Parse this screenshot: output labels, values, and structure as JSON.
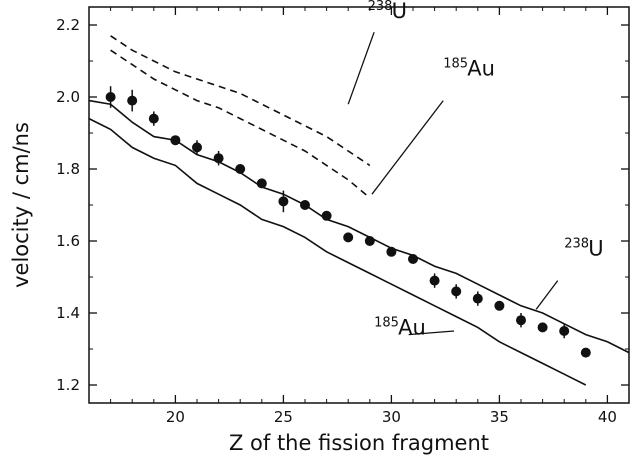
{
  "chart_data": {
    "type": "scatter",
    "xlabel": "Z of the fission fragment",
    "ylabel": "velocity / cm/ns",
    "xlim": [
      16,
      41
    ],
    "ylim": [
      1.15,
      2.25
    ],
    "xticks": [
      "20",
      "25",
      "30",
      "35",
      "40"
    ],
    "yticks": [
      "1.2",
      "1.4",
      "1.6",
      "1.8",
      "2.0",
      "2.2"
    ],
    "grid": false,
    "series": [
      {
        "style": "points-with-errorbars",
        "x": [
          17,
          18,
          19,
          20,
          21,
          22,
          23,
          24,
          25,
          26,
          27,
          28,
          29,
          30,
          31,
          32,
          33,
          34,
          35,
          36,
          37,
          38,
          39
        ],
        "y": [
          2.0,
          1.99,
          1.94,
          1.88,
          1.86,
          1.83,
          1.8,
          1.76,
          1.71,
          1.7,
          1.67,
          1.61,
          1.6,
          1.57,
          1.55,
          1.49,
          1.46,
          1.44,
          1.42,
          1.38,
          1.36,
          1.35,
          1.29
        ],
        "err": [
          0.03,
          0.03,
          0.02,
          0.01,
          0.02,
          0.02,
          0.01,
          0.01,
          0.03,
          0.01,
          0.01,
          0.01,
          0.01,
          0.01,
          0.01,
          0.02,
          0.02,
          0.02,
          0.01,
          0.02,
          0.01,
          0.02,
          0.01
        ]
      },
      {
        "style": "solid",
        "x": [
          16,
          17,
          18,
          19,
          20,
          21,
          22,
          23,
          24,
          25,
          26,
          27,
          28,
          29,
          30,
          31,
          32,
          33,
          34,
          35,
          36,
          37,
          38,
          39,
          40,
          41
        ],
        "y": [
          1.99,
          1.98,
          1.93,
          1.89,
          1.88,
          1.84,
          1.82,
          1.79,
          1.75,
          1.73,
          1.7,
          1.66,
          1.64,
          1.61,
          1.58,
          1.56,
          1.53,
          1.51,
          1.48,
          1.45,
          1.42,
          1.4,
          1.37,
          1.34,
          1.32,
          1.29
        ]
      },
      {
        "style": "solid",
        "x": [
          16,
          17,
          18,
          19,
          20,
          21,
          22,
          23,
          24,
          25,
          26,
          27,
          28,
          29,
          30,
          31,
          32,
          33,
          34,
          35,
          36,
          37,
          38,
          39
        ],
        "y": [
          1.94,
          1.91,
          1.86,
          1.83,
          1.81,
          1.76,
          1.73,
          1.7,
          1.66,
          1.64,
          1.61,
          1.57,
          1.54,
          1.51,
          1.48,
          1.45,
          1.42,
          1.39,
          1.36,
          1.32,
          1.29,
          1.26,
          1.23,
          1.2
        ]
      },
      {
        "style": "dashed",
        "x": [
          17,
          18,
          19,
          20,
          21,
          22,
          23,
          24,
          25,
          26,
          27,
          28,
          29
        ],
        "y": [
          2.17,
          2.13,
          2.1,
          2.07,
          2.05,
          2.03,
          2.01,
          1.98,
          1.95,
          1.92,
          1.89,
          1.85,
          1.81
        ]
      },
      {
        "style": "dashed",
        "x": [
          17,
          18,
          19,
          20,
          21,
          22,
          23,
          24,
          25,
          26,
          27,
          28,
          29
        ],
        "y": [
          2.13,
          2.09,
          2.05,
          2.02,
          1.99,
          1.97,
          1.94,
          1.91,
          1.88,
          1.85,
          1.81,
          1.77,
          1.72
        ]
      }
    ],
    "annotations": [
      {
        "sup": "238",
        "text": "U",
        "x": 28.9,
        "y": 2.22,
        "leader": [
          [
            29.2,
            2.18
          ],
          [
            28.0,
            1.98
          ]
        ]
      },
      {
        "sup": "185",
        "text": "Au",
        "x": 32.4,
        "y": 2.06,
        "leader": [
          [
            32.4,
            1.99
          ],
          [
            29.1,
            1.73
          ]
        ]
      },
      {
        "sup": "238",
        "text": "U",
        "x": 38.0,
        "y": 1.56,
        "leader": [
          [
            37.7,
            1.49
          ],
          [
            36.7,
            1.41
          ]
        ]
      },
      {
        "sup": "185",
        "text": "Au",
        "x": 29.2,
        "y": 1.34,
        "leader": [
          [
            30.8,
            1.34
          ],
          [
            32.9,
            1.35
          ]
        ]
      }
    ]
  }
}
